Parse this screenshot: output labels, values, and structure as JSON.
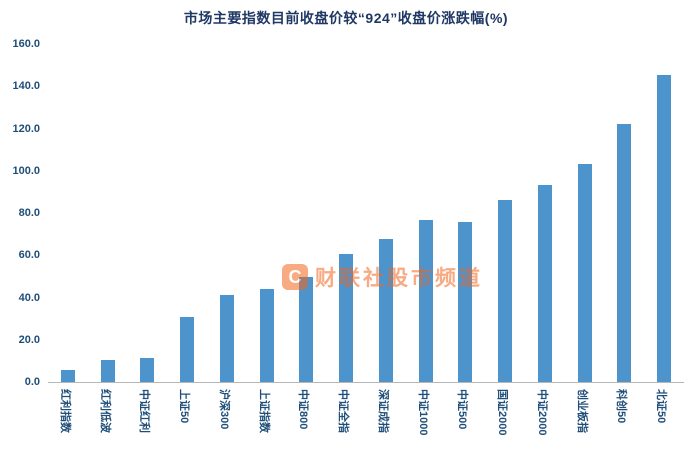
{
  "chart_data": {
    "type": "bar",
    "title": "市场主要指数目前收盘价较“924”收盘价涨跌幅(%)",
    "categories": [
      "红利指数",
      "红利低波",
      "中证红利",
      "上证50",
      "沪深300",
      "上证指数",
      "中证800",
      "中证全指",
      "深证成指",
      "中证1000",
      "中证500",
      "国证2000",
      "中证2000",
      "创业板指",
      "科创50",
      "北证50"
    ],
    "values": [
      5.8,
      10.5,
      11.5,
      31.0,
      41.0,
      44.0,
      49.5,
      60.5,
      67.5,
      76.5,
      76.0,
      86.0,
      93.5,
      103.0,
      122.0,
      145.5
    ],
    "xlabel": "",
    "ylabel": "",
    "ylim": [
      0,
      160
    ],
    "yticks": [
      "0.0",
      "20.0",
      "40.0",
      "60.0",
      "80.0",
      "100.0",
      "120.0",
      "140.0",
      "160.0"
    ],
    "grid": false,
    "legend": "none",
    "bar_color": "#4d93cc"
  },
  "watermark": {
    "logo_letter": "C",
    "text": "财联社股市频道",
    "color": "#f4671e"
  }
}
